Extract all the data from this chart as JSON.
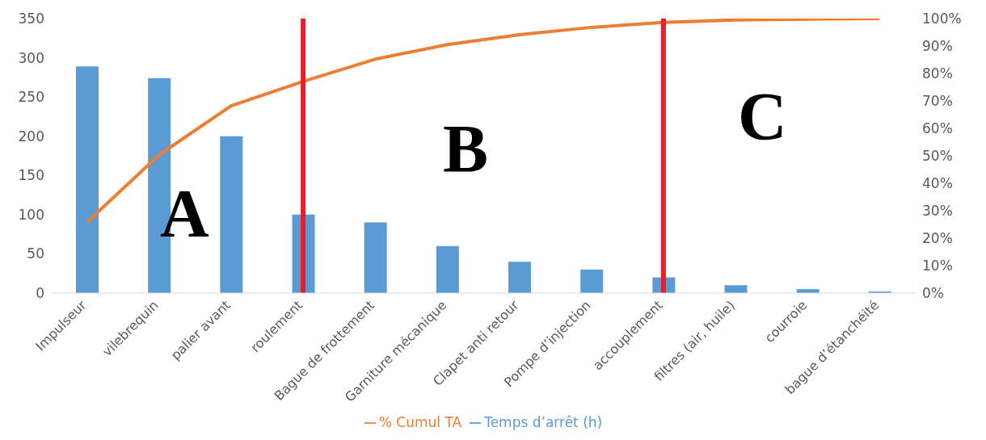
{
  "chart_data": {
    "type": "bar",
    "categories": [
      "Impulseur",
      "vilebrequin",
      "palier avant",
      "roulement",
      "Bague de frottement",
      "Garniture mécanique",
      "Clapet anti retour",
      "Pompe d’injection",
      "accouplement",
      "filtres (air, huile)",
      "courroie",
      "bague d’étanchéité"
    ],
    "series": [
      {
        "name": "Temps d’arrêt (h)",
        "color": "#5b9bd5",
        "values": [
          289,
          274,
          200,
          100,
          90,
          60,
          40,
          30,
          20,
          10,
          5,
          2
        ]
      },
      {
        "name": "% Cumul TA",
        "type": "line",
        "axis": "y2",
        "color": "#ed7d31",
        "values": [
          25.8,
          50.3,
          68.2,
          77.1,
          85.2,
          90.5,
          94.1,
          96.8,
          98.6,
          99.5,
          99.8,
          100
        ]
      }
    ],
    "ylim": [
      0,
      350
    ],
    "yticks": [
      0,
      50,
      100,
      150,
      200,
      250,
      300,
      350
    ],
    "y2lim": [
      0,
      100
    ],
    "y2ticks": [
      {
        "value": 0,
        "label": "0%"
      },
      {
        "value": 10,
        "label": "10%"
      },
      {
        "value": 20,
        "label": "20%"
      },
      {
        "value": 30,
        "label": "30%"
      },
      {
        "value": 40,
        "label": "40%"
      },
      {
        "value": 50,
        "label": "50%"
      },
      {
        "value": 60,
        "label": "60%"
      },
      {
        "value": 70,
        "label": "70%"
      },
      {
        "value": 80,
        "label": "80%"
      },
      {
        "value": 90,
        "label": "90%"
      },
      {
        "value": 100,
        "label": "100%"
      }
    ],
    "ref_lines": [
      {
        "axis": "x",
        "value": "roulement",
        "color": "#ee1c25"
      },
      {
        "axis": "x",
        "value": "accouplement",
        "color": "#ee1c25"
      }
    ],
    "annotations": [
      "A",
      "B",
      "C"
    ],
    "grid": false,
    "legend": "bottom",
    "marker": "none"
  }
}
